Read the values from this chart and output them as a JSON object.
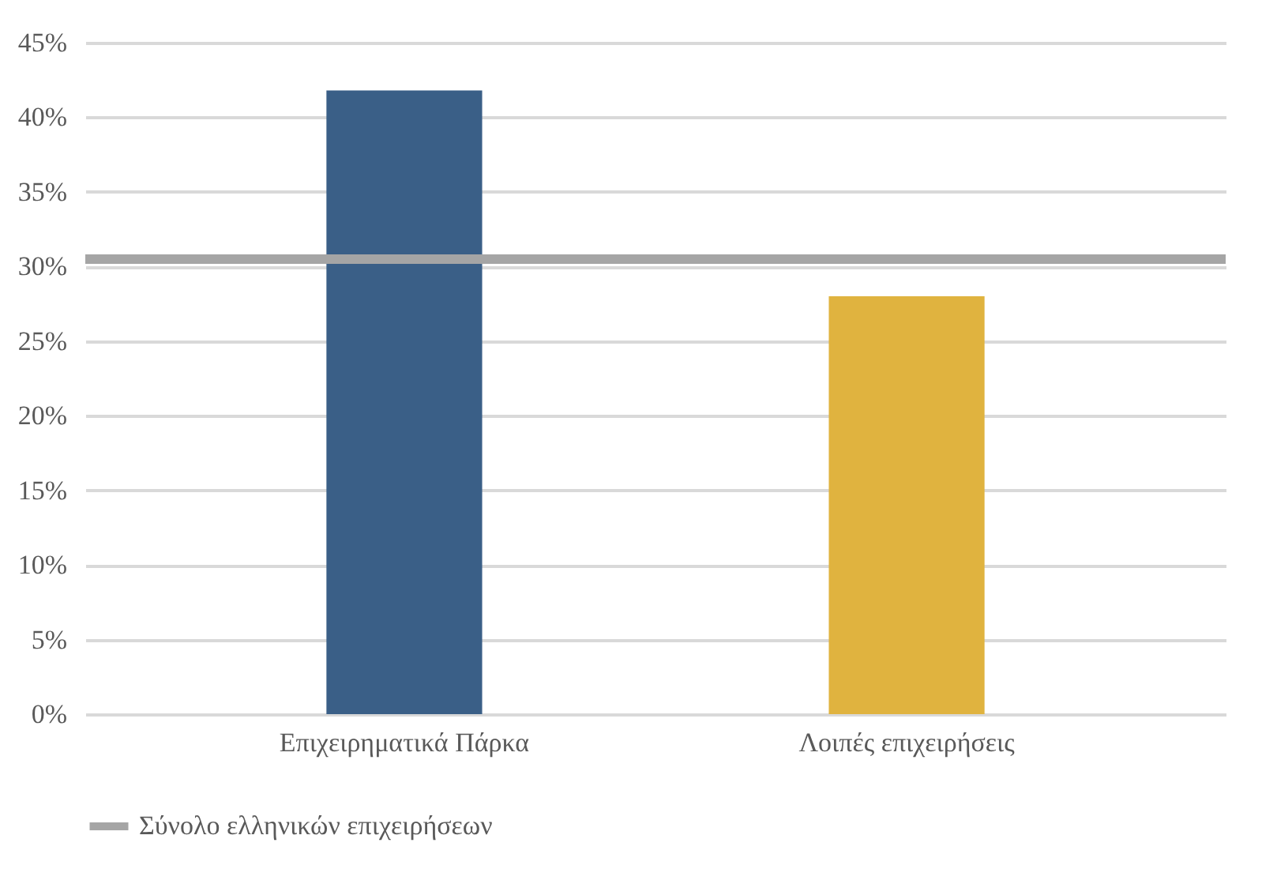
{
  "chart_data": {
    "type": "bar",
    "categories": [
      "Επιχειρηματικά Πάρκα",
      "Λοιπές επιχειρήσεις"
    ],
    "values": [
      41.8,
      28.0
    ],
    "colors": [
      "#3a5f87",
      "#e0b33f"
    ],
    "ylim": [
      0,
      45
    ],
    "yticks": [
      {
        "value": 0,
        "label": "0%"
      },
      {
        "value": 5,
        "label": "5%"
      },
      {
        "value": 10,
        "label": "10%"
      },
      {
        "value": 15,
        "label": "15%"
      },
      {
        "value": 20,
        "label": "20%"
      },
      {
        "value": 25,
        "label": "25%"
      },
      {
        "value": 30,
        "label": "30%"
      },
      {
        "value": 35,
        "label": "35%"
      },
      {
        "value": 40,
        "label": "40%"
      },
      {
        "value": 45,
        "label": "45%"
      }
    ],
    "ref_lines": [
      {
        "axis": "y",
        "value": 30.5,
        "label": "Σύνολο ελληνικών επιχειρήσεων",
        "color": "#a5a5a5"
      }
    ],
    "grid": "y",
    "legend": "bottom"
  }
}
